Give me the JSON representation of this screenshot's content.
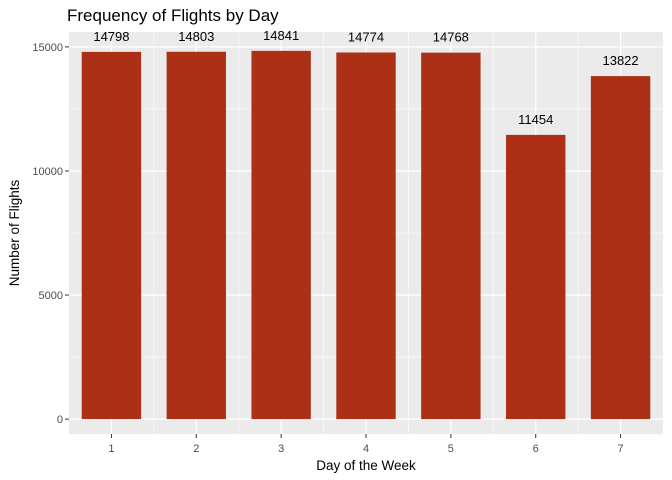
{
  "chart_data": {
    "type": "bar",
    "title": "Frequency of Flights by Day",
    "xlabel": "Day of the Week",
    "ylabel": "Number of Flights",
    "categories": [
      "1",
      "2",
      "3",
      "4",
      "5",
      "6",
      "7"
    ],
    "values": [
      14798,
      14803,
      14841,
      14774,
      14768,
      11454,
      13822
    ],
    "data_labels": [
      "14798",
      "14803",
      "14841",
      "14774",
      "14768",
      "11454",
      "13822"
    ],
    "y_ticks": [
      0,
      5000,
      10000,
      15000
    ],
    "y_tick_labels": [
      "0",
      "5000",
      "10000",
      "15000"
    ],
    "ylim": [
      -600,
      15600
    ],
    "grid": true,
    "colors": {
      "bar": "#AB3016",
      "panel": "#EBEBEB",
      "grid": "#FFFFFF"
    }
  }
}
